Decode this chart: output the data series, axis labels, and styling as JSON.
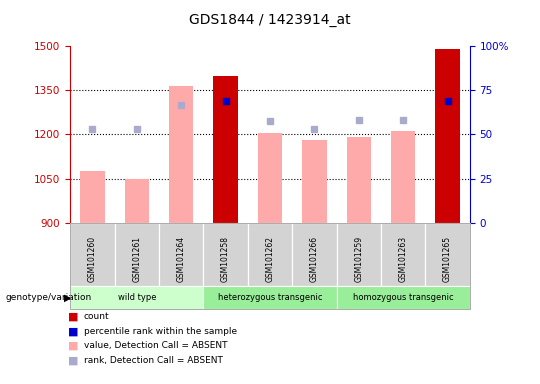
{
  "title": "GDS1844 / 1423914_at",
  "samples": [
    "GSM101260",
    "GSM101261",
    "GSM101264",
    "GSM101258",
    "GSM101262",
    "GSM101266",
    "GSM101259",
    "GSM101263",
    "GSM101265"
  ],
  "group_info": [
    {
      "start": 0,
      "end": 3,
      "label": "wild type",
      "color": "#ccffcc"
    },
    {
      "start": 3,
      "end": 6,
      "label": "heterozygous transgenic",
      "color": "#99ee99"
    },
    {
      "start": 6,
      "end": 9,
      "label": "homozygous transgenic",
      "color": "#99ee99"
    }
  ],
  "bar_values": [
    1075,
    1050,
    1365,
    1400,
    1205,
    1180,
    1190,
    1210,
    1490
  ],
  "bar_absent": [
    true,
    true,
    true,
    false,
    true,
    true,
    true,
    true,
    false
  ],
  "rank_values": [
    1220,
    1218,
    1300,
    1315,
    1245,
    1218,
    1248,
    1250,
    1315
  ],
  "rank_absent": [
    true,
    true,
    true,
    false,
    true,
    true,
    true,
    true,
    false
  ],
  "ylim_left": [
    900,
    1500
  ],
  "ylim_right": [
    0,
    100
  ],
  "yticks_left": [
    900,
    1050,
    1200,
    1350,
    1500
  ],
  "yticks_right": [
    0,
    25,
    50,
    75,
    100
  ],
  "left_color": "#cc0000",
  "right_color": "#0000cc",
  "bar_color_absent": "#ffaaaa",
  "bar_color_present": "#cc0000",
  "rank_color_absent": "#aaaacc",
  "rank_color_present": "#0000cc",
  "legend_items": [
    {
      "color": "#cc0000",
      "label": "count"
    },
    {
      "color": "#0000cc",
      "label": "percentile rank within the sample"
    },
    {
      "color": "#ffaaaa",
      "label": "value, Detection Call = ABSENT"
    },
    {
      "color": "#aaaacc",
      "label": "rank, Detection Call = ABSENT"
    }
  ]
}
